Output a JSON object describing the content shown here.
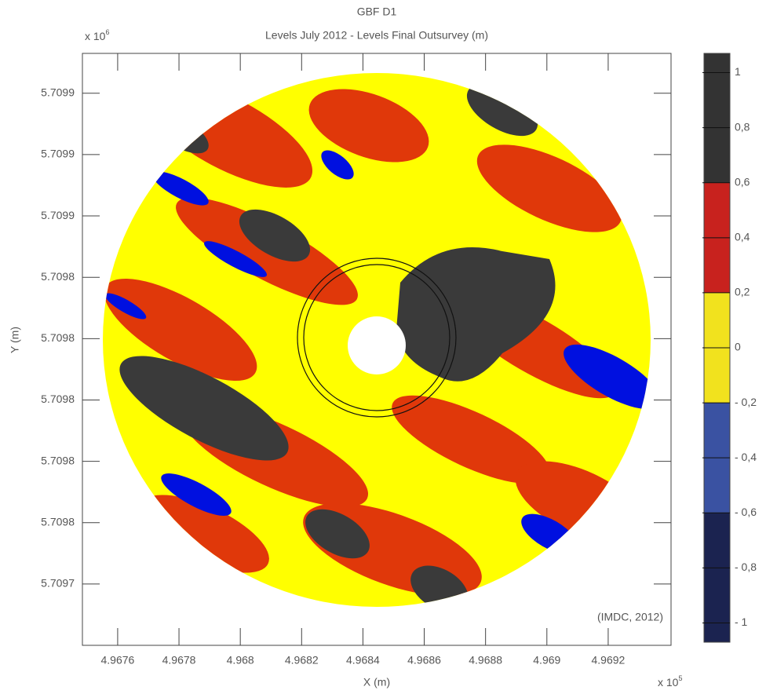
{
  "chart_data": {
    "type": "map",
    "title": "GBF D1",
    "subtitle": "Levels July 2012 - Levels Final Outsurvey (m)",
    "x_label": "X (m)",
    "y_label": "Y (m)",
    "x_scale": {
      "text": "x 10",
      "exponent": "5"
    },
    "y_scale": {
      "text": "x 10",
      "exponent": "6"
    },
    "annotation": "(IMDC, 2012)",
    "xlim": [
      4.967485,
      4.969405
    ],
    "xticks": [
      4.9676,
      4.9678,
      4.968,
      4.9682,
      4.9684,
      4.9686,
      4.9688,
      4.969,
      4.9692
    ],
    "ylim": [
      5.70972,
      5.709913
    ],
    "yticks": [
      {
        "value": 5.70974,
        "label": "5.7097"
      },
      {
        "value": 5.70976,
        "label": "5.7098"
      },
      {
        "value": 5.70978,
        "label": "5.7098"
      },
      {
        "value": 5.7098,
        "label": "5.7098"
      },
      {
        "value": 5.70982,
        "label": "5.7098"
      },
      {
        "value": 5.70984,
        "label": "5.7098"
      },
      {
        "value": 5.70986,
        "label": "5.7099"
      },
      {
        "value": 5.70988,
        "label": "5.7099"
      },
      {
        "value": 5.7099,
        "label": "5.7099"
      }
    ],
    "clim": [
      -1.07,
      1.07
    ],
    "color_bounds": [
      -0.6,
      -0.2,
      0.2,
      0.6
    ],
    "colors": [
      "#1b2350",
      "#3a52a2",
      "#f1e21e",
      "#c8221e",
      "#333333"
    ],
    "cticks": [
      {
        "value": 1,
        "label": "1"
      },
      {
        "value": 0.8,
        "label": "0,8"
      },
      {
        "value": 0.6,
        "label": "0,6"
      },
      {
        "value": 0.4,
        "label": "0,4"
      },
      {
        "value": 0.2,
        "label": "0,2"
      },
      {
        "value": 0,
        "label": "0"
      },
      {
        "value": -0.2,
        "label": "- 0,2"
      },
      {
        "value": -0.4,
        "label": "- 0,4"
      },
      {
        "value": -0.6,
        "label": "- 0,6"
      },
      {
        "value": -0.8,
        "label": "- 0,8"
      },
      {
        "value": -1,
        "label": "- 1"
      }
    ]
  }
}
